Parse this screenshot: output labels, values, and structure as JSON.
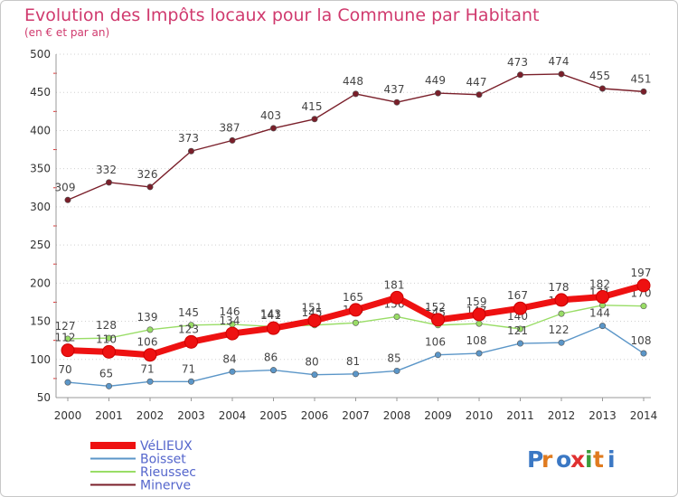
{
  "chart_data": {
    "type": "line",
    "title": "Evolution des Impôts locaux pour la Commune par Habitant",
    "subtitle": "(en € et par an)",
    "x": [
      "2000",
      "2001",
      "2002",
      "2003",
      "2004",
      "2005",
      "2006",
      "2007",
      "2008",
      "2009",
      "2010",
      "2011",
      "2012",
      "2013",
      "2014"
    ],
    "ylim": [
      50,
      500
    ],
    "yticks": [
      50,
      100,
      150,
      200,
      250,
      300,
      350,
      400,
      450,
      500
    ],
    "grid": "horizontal dotted",
    "legend_position": "bottom-left",
    "series": [
      {
        "name": "VéLIEUX",
        "color": "#ee1111",
        "values": [
          112,
          110,
          106,
          123,
          134,
          141,
          151,
          165,
          181,
          152,
          159,
          167,
          178,
          182,
          197
        ]
      },
      {
        "name": "Boisset",
        "color": "#5b96c8",
        "values": [
          70,
          65,
          71,
          71,
          84,
          86,
          80,
          81,
          85,
          106,
          108,
          121,
          122,
          144,
          108
        ]
      },
      {
        "name": "Rieussec",
        "color": "#99dd66",
        "values": [
          127,
          128,
          139,
          145,
          146,
          143,
          145,
          148,
          156,
          145,
          147,
          140,
          160,
          171,
          170
        ]
      },
      {
        "name": "Minerve",
        "color": "#7a1f2a",
        "values": [
          309,
          332,
          326,
          373,
          387,
          403,
          415,
          448,
          437,
          449,
          447,
          473,
          474,
          455,
          451
        ]
      }
    ]
  },
  "logo": {
    "text": "Proxiti"
  }
}
